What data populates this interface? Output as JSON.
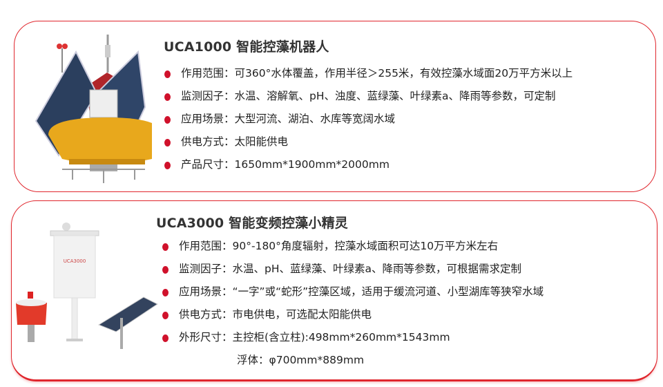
{
  "products": [
    {
      "title": "UCA1000  智能控藻机器人",
      "image": "solar-buoy-robot-image",
      "specs": [
        {
          "label": "作用范围：",
          "value": "可360°水体覆盖，作用半径＞255米，有效控藻水域面20万平方米以上"
        },
        {
          "label": "监测因子：",
          "value": "水温、溶解氧、pH、浊度、蓝绿藻、叶绿素a、降雨等参数，可定制"
        },
        {
          "label": "应用场景：",
          "value": "大型河流、湖泊、水库等宽阔水域"
        },
        {
          "label": "供电方式：",
          "value": "太阳能供电"
        },
        {
          "label": "产品尺寸：",
          "value": "1650mm*1900mm*2000mm"
        }
      ]
    },
    {
      "title": "UCA3000  智能变频控藻小精灵",
      "image": "control-cabinet-float-solar-panel-image",
      "cabinet_label": "UCA3000",
      "specs": [
        {
          "label": "作用范围：",
          "value": "90°-180°角度辐射，控藻水域面积可达10万平方米左右"
        },
        {
          "label": "监测因子：",
          "value": "水温、pH、蓝绿藻、叶绿素a、降雨等参数，可根据需求定制"
        },
        {
          "label": "应用场景：",
          "value": "“一字”或“蛇形”控藻区域，适用于缓流河道、小型湖库等狭窄水域"
        },
        {
          "label": "供电方式：",
          "value": "市电供电，可选配太阳能供电"
        },
        {
          "label": "外形尺寸：",
          "value": "主控柜(含立柱):498mm*260mm*1543mm"
        }
      ],
      "extra_line": "浮体：φ700mm*889mm"
    }
  ],
  "colors": {
    "accent": "#e0262d",
    "bullet": "#d0112b",
    "buoy": "#e8a81c",
    "float": "#e23a2a"
  }
}
